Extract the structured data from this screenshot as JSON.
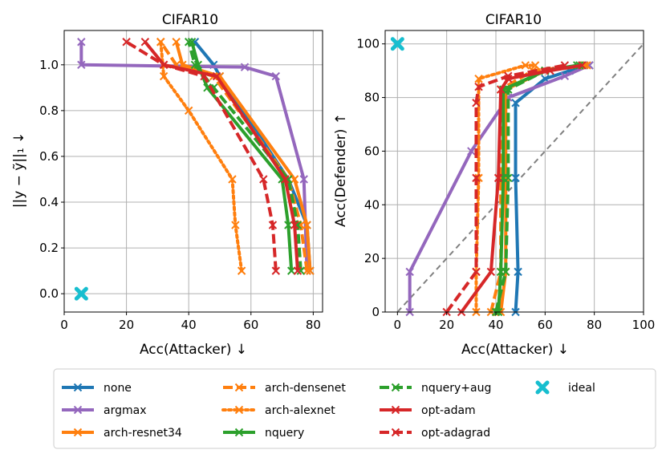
{
  "chart_data": [
    {
      "type": "line",
      "title": "CIFAR10",
      "xlabel": "Acc(Attacker)  ↓",
      "ylabel": "||y − ỹ||₁  ↓",
      "xlim": [
        0,
        83
      ],
      "ylim": [
        -0.08,
        1.15
      ],
      "xticks": [
        0,
        20,
        40,
        60,
        80
      ],
      "yticks": [
        0.0,
        0.2,
        0.4,
        0.6,
        0.8,
        1.0
      ],
      "series": [
        {
          "name": "none",
          "color": "#1f77b4",
          "style": "solid",
          "marker": "x",
          "x": [
            79,
            78,
            72,
            50,
            48,
            42
          ],
          "y": [
            0.1,
            0.3,
            0.5,
            0.95,
            1.0,
            1.1
          ]
        },
        {
          "name": "argmax",
          "color": "#9467bd",
          "style": "solid",
          "marker": "x",
          "x": [
            78,
            77,
            68,
            58,
            5.5,
            5.5
          ],
          "y": [
            0.1,
            0.5,
            0.95,
            0.99,
            1.0,
            1.1
          ]
        },
        {
          "name": "arch-resnet34",
          "color": "#ff7f0e",
          "style": "solid",
          "marker": "x",
          "x": [
            79,
            78,
            74,
            50,
            38,
            36
          ],
          "y": [
            0.1,
            0.3,
            0.5,
            0.95,
            1.0,
            1.1
          ]
        },
        {
          "name": "arch-densenet",
          "color": "#ff7f0e",
          "style": "dashed",
          "marker": "x",
          "x": [
            78,
            76,
            72,
            48,
            36,
            31
          ],
          "y": [
            0.1,
            0.3,
            0.5,
            0.95,
            1.0,
            1.1
          ]
        },
        {
          "name": "arch-alexnet",
          "color": "#ff7f0e",
          "style": "dotted",
          "marker": "x",
          "x": [
            57,
            55,
            54,
            40,
            32,
            31
          ],
          "y": [
            0.1,
            0.3,
            0.5,
            0.8,
            0.95,
            1.1
          ]
        },
        {
          "name": "nquery+aug",
          "color": "#2ca02c",
          "style": "dashed",
          "marker": "x",
          "x": [
            76,
            75,
            72,
            48,
            42,
            40
          ],
          "y": [
            0.1,
            0.3,
            0.5,
            0.9,
            1.0,
            1.1
          ]
        },
        {
          "name": "nquery",
          "color": "#2ca02c",
          "style": "solid",
          "marker": "x",
          "x": [
            73,
            72,
            70,
            46,
            43,
            41
          ],
          "y": [
            0.1,
            0.3,
            0.5,
            0.9,
            1.0,
            1.1
          ]
        },
        {
          "name": "opt-adam",
          "color": "#d62728",
          "style": "solid",
          "marker": "x",
          "x": [
            75,
            74,
            71,
            49,
            32,
            26
          ],
          "y": [
            0.1,
            0.3,
            0.5,
            0.95,
            1.0,
            1.1
          ]
        },
        {
          "name": "opt-adagrad",
          "color": "#d62728",
          "style": "dashed",
          "marker": "x",
          "x": [
            68,
            67,
            64,
            45,
            32,
            20
          ],
          "y": [
            0.1,
            0.3,
            0.5,
            0.95,
            1.0,
            1.1
          ]
        },
        {
          "name": "ideal",
          "color": "#17becf",
          "style": "none",
          "marker": "X",
          "x": [
            5.5
          ],
          "y": [
            0.0
          ]
        }
      ]
    },
    {
      "type": "line",
      "title": "CIFAR10",
      "xlabel": "Acc(Attacker)  ↓",
      "ylabel": "Acc(Defender)  ↑",
      "xlim": [
        -5,
        100
      ],
      "ylim": [
        0,
        105
      ],
      "xticks": [
        0,
        20,
        40,
        60,
        80,
        100
      ],
      "yticks": [
        0,
        20,
        40,
        60,
        80,
        100
      ],
      "diagonal": {
        "color": "#808080",
        "style": "dashed"
      },
      "series": [
        {
          "name": "none",
          "color": "#1f77b4",
          "style": "solid",
          "marker": "x",
          "x": [
            48,
            49,
            48,
            48,
            60,
            70,
            78
          ],
          "y": [
            0,
            15,
            50,
            78,
            87,
            90,
            92
          ]
        },
        {
          "name": "argmax",
          "color": "#9467bd",
          "style": "solid",
          "marker": "x",
          "x": [
            5,
            5,
            30,
            45,
            68,
            78
          ],
          "y": [
            0,
            15,
            60,
            80,
            88,
            92
          ]
        },
        {
          "name": "arch-resnet34",
          "color": "#ff7f0e",
          "style": "solid",
          "marker": "x",
          "x": [
            42,
            44,
            44,
            44,
            60,
            77
          ],
          "y": [
            0,
            15,
            50,
            83,
            90,
            92
          ]
        },
        {
          "name": "arch-densenet",
          "color": "#ff7f0e",
          "style": "dashed",
          "marker": "x",
          "x": [
            38,
            42,
            42,
            42,
            55,
            76
          ],
          "y": [
            0,
            15,
            50,
            83,
            90,
            92
          ]
        },
        {
          "name": "arch-alexnet",
          "color": "#ff7f0e",
          "style": "dotted",
          "marker": "x",
          "x": [
            32,
            32,
            33,
            33,
            52,
            56
          ],
          "y": [
            0,
            15,
            50,
            87,
            92,
            92
          ]
        },
        {
          "name": "nquery+aug",
          "color": "#2ca02c",
          "style": "dashed",
          "marker": "x",
          "x": [
            40,
            44,
            45,
            45,
            60,
            74
          ],
          "y": [
            0,
            15,
            50,
            83,
            90,
            92
          ]
        },
        {
          "name": "nquery",
          "color": "#2ca02c",
          "style": "solid",
          "marker": "x",
          "x": [
            41,
            42,
            43,
            43,
            60,
            73
          ],
          "y": [
            0,
            15,
            50,
            83,
            90,
            92
          ]
        },
        {
          "name": "opt-adam",
          "color": "#d62728",
          "style": "solid",
          "marker": "x",
          "x": [
            26,
            38,
            41,
            42,
            45,
            62,
            75
          ],
          "y": [
            0,
            15,
            50,
            83,
            87,
            90,
            92
          ]
        },
        {
          "name": "opt-adagrad",
          "color": "#d62728",
          "style": "dashed",
          "marker": "x",
          "x": [
            20,
            32,
            32,
            32,
            33,
            45,
            68
          ],
          "y": [
            0,
            15,
            50,
            78,
            84,
            88,
            92
          ]
        },
        {
          "name": "ideal",
          "color": "#17becf",
          "style": "none",
          "marker": "X",
          "x": [
            0
          ],
          "y": [
            100
          ]
        }
      ]
    }
  ],
  "legend": {
    "entries": [
      {
        "label": "none",
        "color": "#1f77b4",
        "style": "solid"
      },
      {
        "label": "argmax",
        "color": "#9467bd",
        "style": "solid"
      },
      {
        "label": "arch-resnet34",
        "color": "#ff7f0e",
        "style": "solid"
      },
      {
        "label": "arch-densenet",
        "color": "#ff7f0e",
        "style": "dashed"
      },
      {
        "label": "arch-alexnet",
        "color": "#ff7f0e",
        "style": "dotted"
      },
      {
        "label": "nquery",
        "color": "#2ca02c",
        "style": "solid"
      },
      {
        "label": "nquery+aug",
        "color": "#2ca02c",
        "style": "dashed"
      },
      {
        "label": "opt-adam",
        "color": "#d62728",
        "style": "solid"
      },
      {
        "label": "opt-adagrad",
        "color": "#d62728",
        "style": "dashed"
      },
      {
        "label": "ideal",
        "color": "#17becf",
        "style": "marker"
      }
    ]
  }
}
